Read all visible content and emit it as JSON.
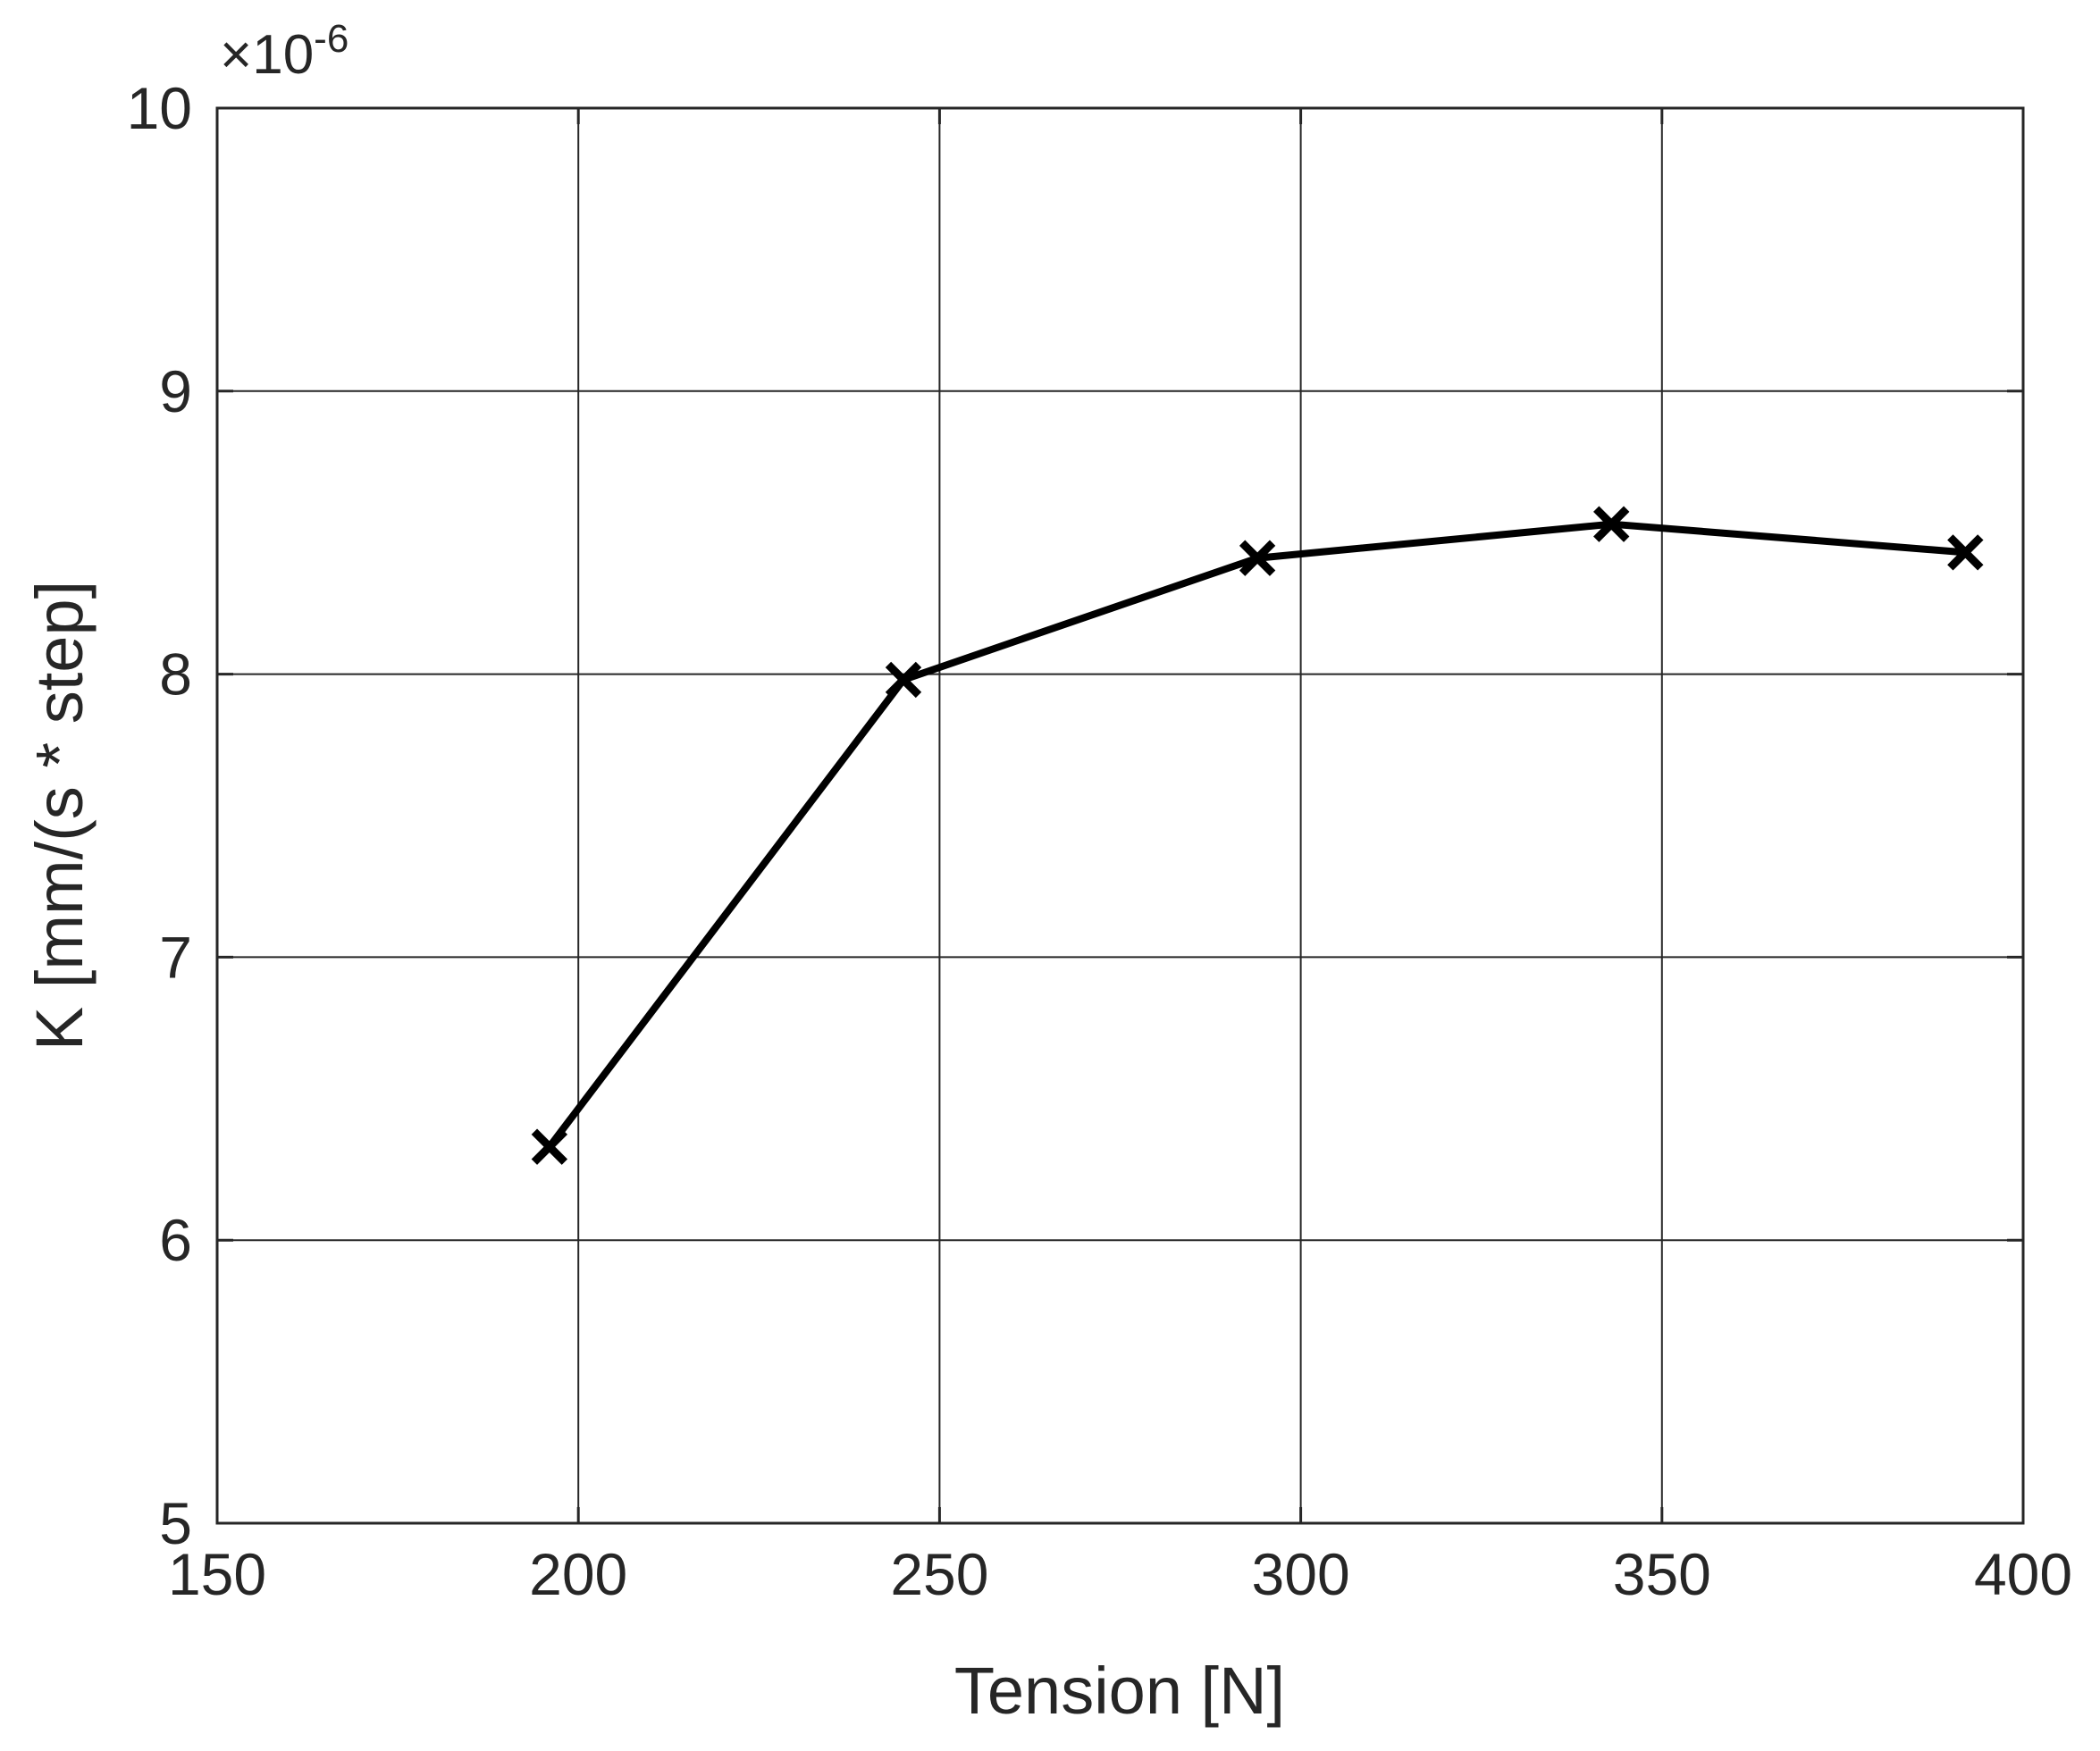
{
  "chart_data": {
    "type": "line",
    "xlabel": "Tension [N]",
    "ylabel": "K [mm/(s * step]",
    "x_ticks": [
      "150",
      "200",
      "250",
      "300",
      "350",
      "400"
    ],
    "y_ticks": [
      "5",
      "6",
      "7",
      "8",
      "9",
      "10"
    ],
    "y_multiplier": {
      "prefix": "×10",
      "exponent": "-6"
    },
    "xlim": [
      150,
      400
    ],
    "ylim": [
      5,
      10
    ],
    "grid": true,
    "series": [
      {
        "marker": "x",
        "color": "#000000",
        "x": [
          196,
          245,
          294,
          343,
          392
        ],
        "y": [
          6.33,
          7.98,
          8.41,
          8.53,
          8.43
        ]
      }
    ]
  }
}
